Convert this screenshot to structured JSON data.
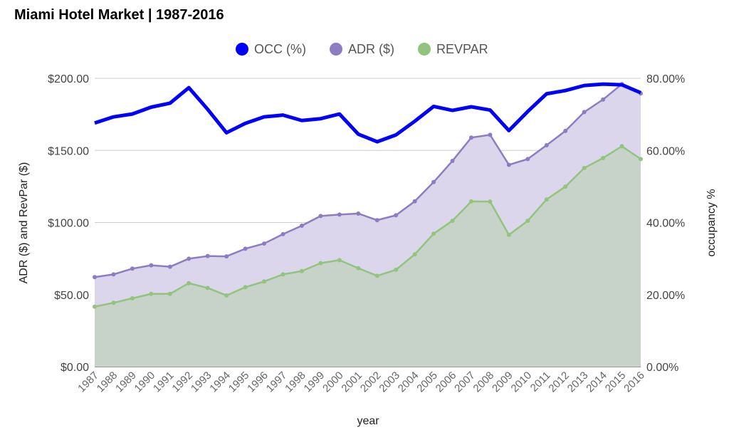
{
  "chart_data": {
    "type": "area",
    "title": "Miami Hotel Market | 1987-2016",
    "xlabel": "year",
    "ylabel_left": "ADR ($) and RevPar ($)",
    "ylabel_right": "occupancy %",
    "ylim_left": [
      0,
      200
    ],
    "ylim_right": [
      0,
      80
    ],
    "left_ticks": [
      "$0.00",
      "$50.00",
      "$100.00",
      "$150.00",
      "$200.00"
    ],
    "right_ticks": [
      "0.00%",
      "20.00%",
      "40.00%",
      "60.00%",
      "80.00%"
    ],
    "grid": true,
    "legend_position": "top",
    "categories": [
      "1987",
      "1988",
      "1989",
      "1990",
      "1991",
      "1992",
      "1993",
      "1994",
      "1995",
      "1996",
      "1997",
      "1998",
      "1999",
      "2000",
      "2001",
      "2002",
      "2003",
      "2004",
      "2005",
      "2006",
      "2007",
      "2008",
      "2009",
      "2010",
      "2011",
      "2012",
      "2013",
      "2014",
      "2015",
      "2016"
    ],
    "series": [
      {
        "name": "OCC (%)",
        "axis": "right",
        "type": "line",
        "color": "#0000ff",
        "values": [
          67.6,
          69.3,
          70.1,
          72.0,
          73.1,
          77.4,
          71.4,
          64.9,
          67.5,
          69.3,
          69.8,
          68.3,
          68.8,
          70.1,
          64.5,
          62.4,
          64.3,
          68.1,
          72.2,
          71.1,
          72.1,
          71.2,
          65.5,
          70.8,
          75.7,
          76.6,
          78.0,
          78.4,
          78.2,
          76.0
        ]
      },
      {
        "name": "ADR ($)",
        "axis": "left",
        "type": "area",
        "color": "#8e7cc3",
        "values": [
          62.1,
          64.0,
          68.0,
          70.3,
          69.3,
          74.9,
          76.7,
          76.5,
          81.8,
          85.4,
          91.9,
          97.8,
          104.5,
          105.5,
          106.2,
          101.6,
          105.0,
          114.7,
          128.0,
          142.7,
          158.9,
          160.8,
          140.0,
          144.0,
          153.6,
          163.5,
          176.6,
          185.3,
          196.0,
          189.5
        ]
      },
      {
        "name": "REVPAR",
        "axis": "left",
        "type": "area",
        "color": "#93c47d",
        "values": [
          41.6,
          44.3,
          47.4,
          50.5,
          50.5,
          57.9,
          54.6,
          49.4,
          55.1,
          59.1,
          64.0,
          66.3,
          71.8,
          73.9,
          68.3,
          63.0,
          67.2,
          77.9,
          92.2,
          101.2,
          114.6,
          114.5,
          91.4,
          101.2,
          116.0,
          124.9,
          137.8,
          144.7,
          152.9,
          144.0
        ]
      }
    ]
  }
}
